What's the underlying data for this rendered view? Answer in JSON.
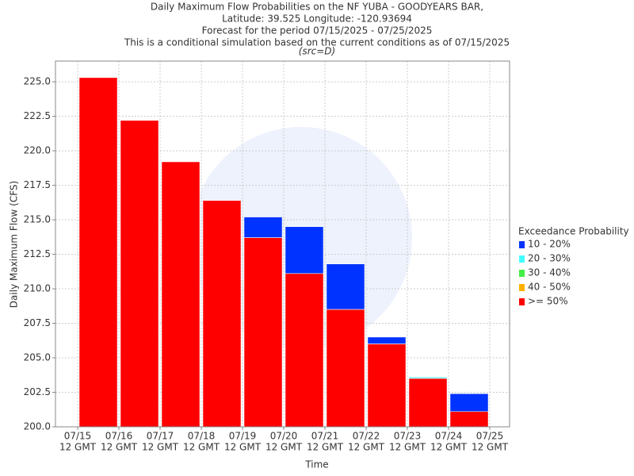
{
  "chart_data": {
    "type": "overlay_bar",
    "title": [
      "Daily Maximum Flow Probabilities on the NF YUBA - GOODYEARS BAR,",
      "Latitude: 39.525 Longitude: -120.93694",
      "Forecast for the period 07/15/2025 - 07/25/2025",
      "This is a conditional simulation based on the current conditions as of 07/15/2025"
    ],
    "subtitle": "(src=D)",
    "ylabel": "Daily Maximum Flow (CFS)",
    "xlabel": "Time",
    "xticks": [
      [
        "07/15",
        "12 GMT"
      ],
      [
        "07/16",
        "12 GMT"
      ],
      [
        "07/17",
        "12 GMT"
      ],
      [
        "07/18",
        "12 GMT"
      ],
      [
        "07/19",
        "12 GMT"
      ],
      [
        "07/20",
        "12 GMT"
      ],
      [
        "07/21",
        "12 GMT"
      ],
      [
        "07/22",
        "12 GMT"
      ],
      [
        "07/23",
        "12 GMT"
      ],
      [
        "07/24",
        "12 GMT"
      ],
      [
        "07/25",
        "12 GMT"
      ]
    ],
    "ylim": [
      200,
      226.5
    ],
    "yticks": [
      {
        "value": 200,
        "label": "200.0"
      },
      {
        "value": 202.5,
        "label": "202.5"
      },
      {
        "value": 205,
        "label": "205.0"
      },
      {
        "value": 207.5,
        "label": "207.5"
      },
      {
        "value": 210,
        "label": "210.0"
      },
      {
        "value": 212.5,
        "label": "212.5"
      },
      {
        "value": 215,
        "label": "215.0"
      },
      {
        "value": 217.5,
        "label": "217.5"
      },
      {
        "value": 220,
        "label": "220.0"
      },
      {
        "value": 222.5,
        "label": "222.5"
      },
      {
        "value": 225,
        "label": "225.0"
      }
    ],
    "grid": true,
    "legend_title": "Exceedance Probability",
    "legend": "right",
    "series": [
      {
        "name": "10 - 20%",
        "color": "#0033ff",
        "values": [
          225.3,
          222.2,
          219.2,
          216.4,
          215.2,
          214.5,
          211.8,
          206.5,
          203.6,
          202.4
        ]
      },
      {
        "name": "20 - 30%",
        "color": "#44ffff",
        "values": [
          225.3,
          222.2,
          219.2,
          216.4,
          213.7,
          211.1,
          208.5,
          206.0,
          203.6,
          201.1
        ]
      },
      {
        "name": "30 - 40%",
        "color": "#44ee44",
        "values": [
          225.3,
          222.2,
          219.2,
          216.4,
          213.7,
          211.1,
          208.5,
          206.0,
          203.5,
          201.1
        ]
      },
      {
        "name": "40 - 50%",
        "color": "#ffb000",
        "values": [
          225.3,
          222.2,
          219.2,
          216.4,
          213.7,
          211.1,
          208.5,
          206.0,
          203.5,
          201.1
        ]
      },
      {
        "name": ">= 50%",
        "color": "#ff0000",
        "values": [
          225.3,
          222.2,
          219.2,
          216.4,
          213.7,
          211.1,
          208.5,
          206.0,
          203.5,
          201.1
        ]
      }
    ]
  }
}
